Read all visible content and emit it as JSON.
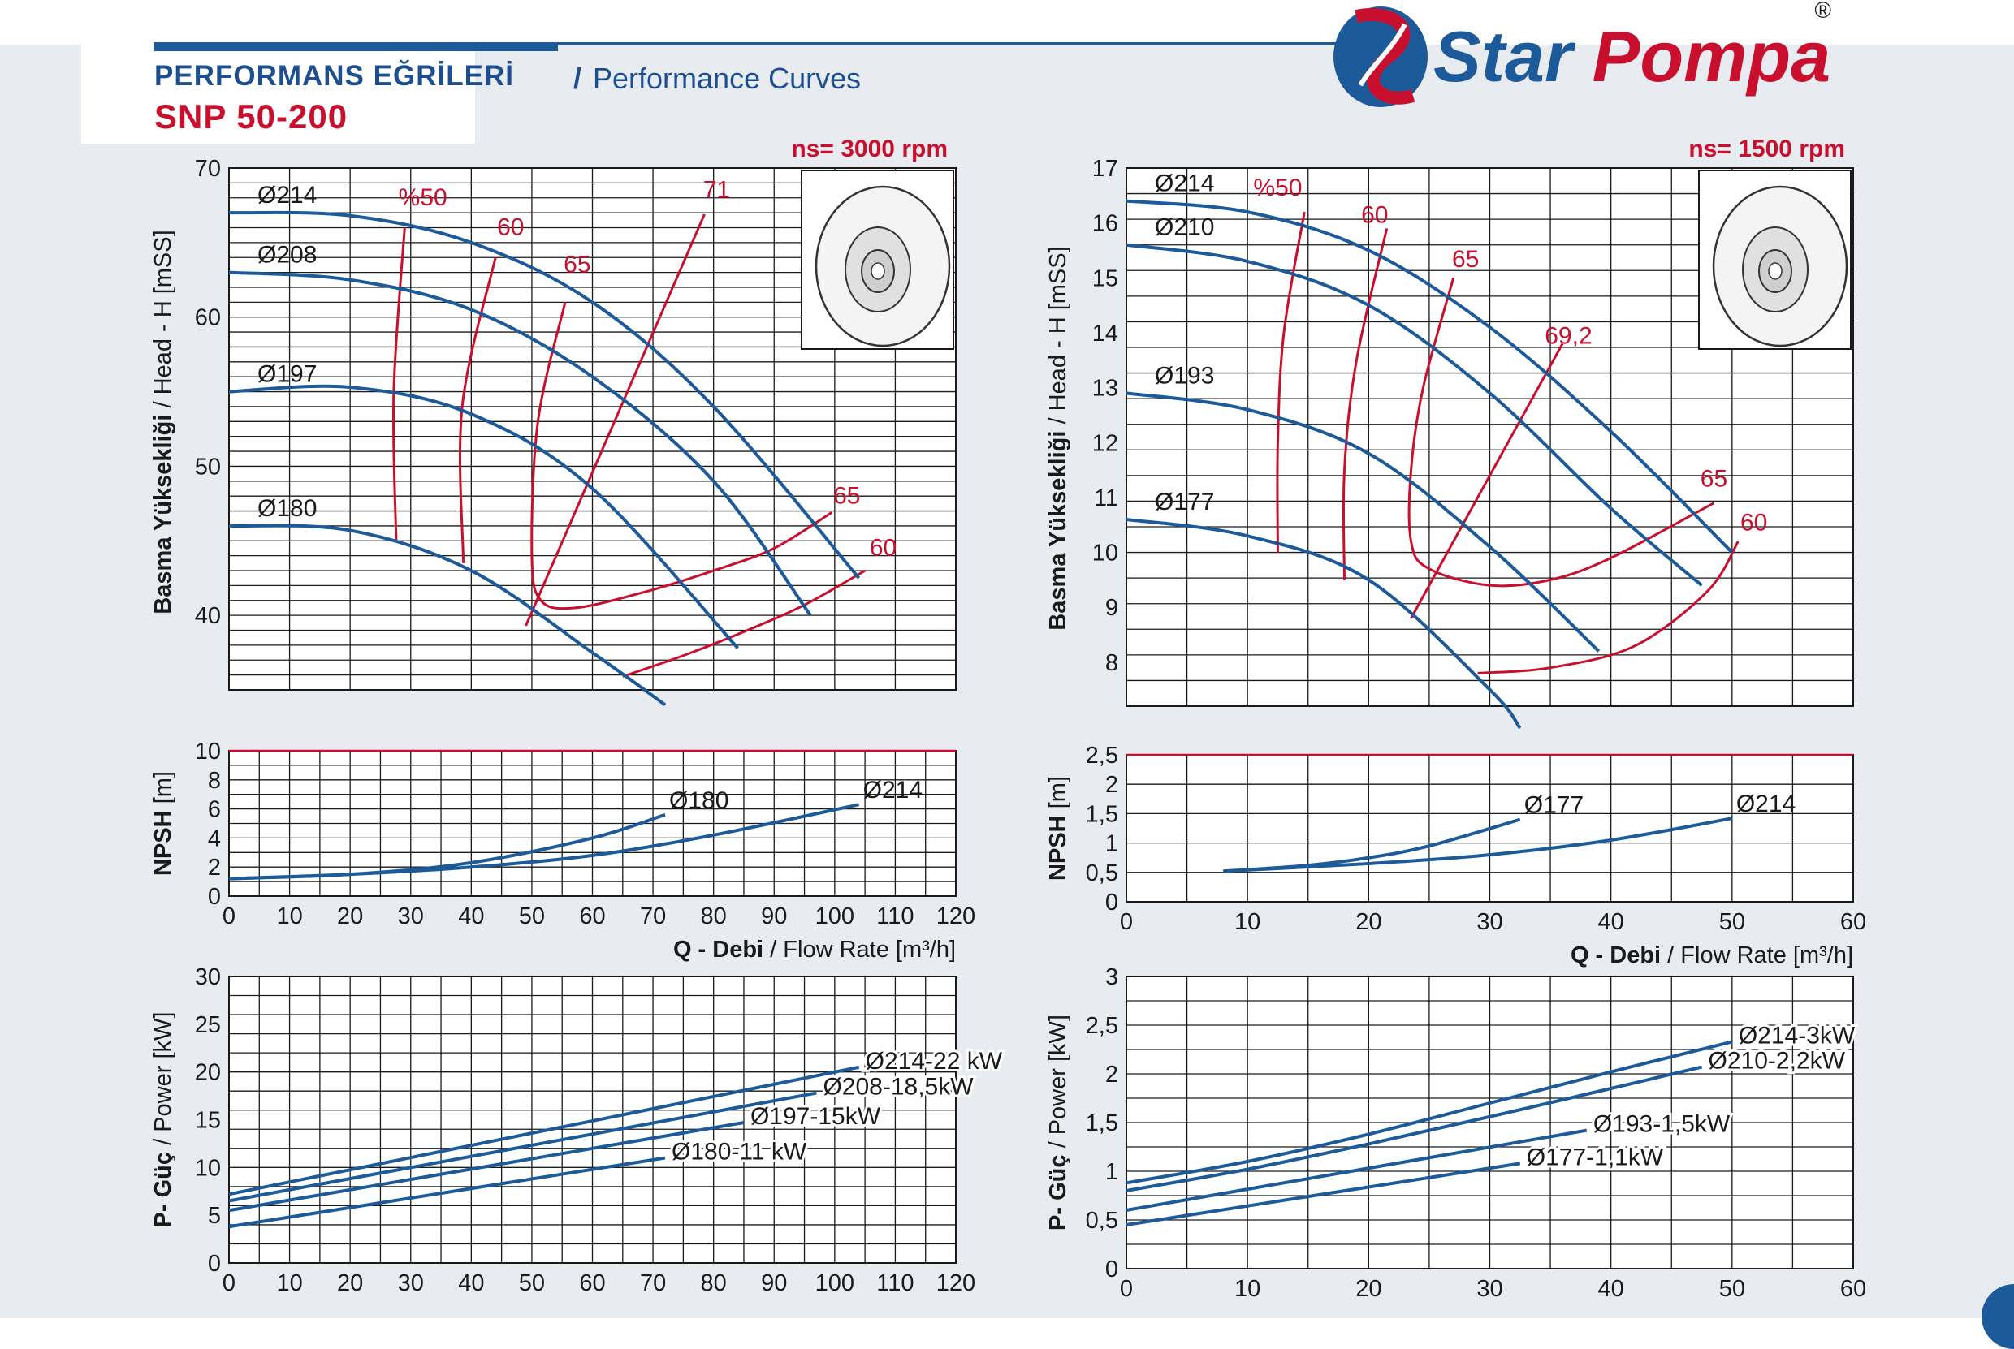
{
  "header": {
    "title_tr": "PERFORMANS EĞRİLERİ",
    "separator": "/",
    "title_en": "Performance Curves",
    "model": "SNP 50-200",
    "brand": "Star Pompa",
    "registered": "®"
  },
  "colors": {
    "blue": "#1d5a9a",
    "red": "#c8102e",
    "grid": "#1a1a1a",
    "text": "#1a1a1a"
  },
  "chart_data": [
    {
      "id": "head_3000",
      "type": "line",
      "speed_label": "ns= 3000 rpm",
      "ylabel_bold": "Basma Yüksekliği",
      "ylabel_rest": "/ Head - H [mSS]",
      "xlim": [
        0,
        120
      ],
      "ylim": [
        35,
        70
      ],
      "yticks": [
        40,
        50,
        60,
        70
      ],
      "impeller_thumbnail": true,
      "series": [
        {
          "name": "Ø214",
          "x": [
            0,
            20,
            40,
            60,
            80,
            104
          ],
          "y": [
            67,
            66.8,
            65,
            61,
            54,
            42.5
          ]
        },
        {
          "name": "Ø208",
          "x": [
            0,
            20,
            40,
            60,
            80,
            96
          ],
          "y": [
            63,
            62.5,
            60.5,
            56,
            49,
            40
          ]
        },
        {
          "name": "Ø197",
          "x": [
            0,
            20,
            40,
            60,
            84
          ],
          "y": [
            55,
            55.3,
            53.5,
            48.5,
            37.8
          ]
        },
        {
          "name": "Ø180",
          "x": [
            0,
            20,
            40,
            60,
            72
          ],
          "y": [
            46,
            45.7,
            43,
            37.5,
            34
          ]
        }
      ],
      "efficiency": [
        {
          "label": "%50",
          "x": [
            28.5,
            26.5,
            27
          ],
          "y": [
            66,
            55,
            45
          ]
        },
        {
          "label": "60",
          "x": [
            44,
            38.5,
            38.5
          ],
          "y": [
            64,
            53,
            43
          ]
        },
        {
          "label": "65",
          "x": [
            55.5,
            50,
            50,
            55,
            68,
            100
          ],
          "y": [
            61,
            52,
            41,
            40.5,
            42,
            46
          ]
        },
        {
          "label": "71",
          "x": [
            49,
            78
          ],
          "y": [
            39.3,
            67
          ]
        },
        {
          "label": "65",
          "x": [
            100
          ],
          "y": [
            46
          ]
        },
        {
          "label": "60",
          "x": [
            65,
            85,
            105
          ],
          "y": [
            35.5,
            39,
            43
          ]
        }
      ],
      "eff_lines": [
        {
          "x": [
            29,
            27.2,
            27.6
          ],
          "y": [
            66,
            55,
            45
          ]
        },
        {
          "x": [
            44,
            38.5,
            38.7
          ],
          "y": [
            64,
            54,
            43.5
          ]
        },
        {
          "x": [
            55.5,
            51,
            50,
            51.5,
            57,
            68,
            80,
            90,
            99.5
          ],
          "y": [
            61,
            53,
            44,
            41,
            40.5,
            41.5,
            43,
            44.5,
            46.9
          ]
        },
        {
          "x": [
            49,
            78.5
          ],
          "y": [
            39.3,
            66.9
          ]
        },
        {
          "x": [
            65,
            75,
            85,
            95,
            105
          ],
          "y": [
            35.9,
            37.3,
            38.9,
            40.7,
            43
          ]
        }
      ],
      "eff_labels": [
        {
          "text": "%50",
          "x": 32,
          "y": 67.5
        },
        {
          "text": "60",
          "x": 46.5,
          "y": 65.5
        },
        {
          "text": "65",
          "x": 57.5,
          "y": 63
        },
        {
          "text": "71",
          "x": 80.5,
          "y": 68
        },
        {
          "text": "65",
          "x": 102,
          "y": 47.5
        },
        {
          "text": "60",
          "x": 108,
          "y": 44
        }
      ]
    },
    {
      "id": "npsh_3000",
      "type": "line",
      "ylabel": "NPSH [m]",
      "xlabel_bold": "Q - Debi",
      "xlabel_rest": "/ Flow Rate [m³/h]",
      "xlim": [
        0,
        120
      ],
      "ylim": [
        0,
        10
      ],
      "xticks": [
        0,
        10,
        20,
        30,
        40,
        50,
        60,
        70,
        80,
        90,
        100,
        110,
        120
      ],
      "yticks": [
        0,
        2,
        4,
        6,
        8,
        10
      ],
      "series": [
        {
          "name": "Ø180",
          "x": [
            0,
            20,
            40,
            60,
            72
          ],
          "y": [
            1.2,
            1.5,
            2.3,
            4,
            5.6
          ]
        },
        {
          "name": "Ø214",
          "x": [
            0,
            20,
            40,
            60,
            80,
            104
          ],
          "y": [
            1.2,
            1.5,
            2,
            2.8,
            4.2,
            6.3
          ]
        }
      ]
    },
    {
      "id": "power_3000",
      "type": "line",
      "ylabel_bold": "P- Güç",
      "ylabel_rest": "/ Power [kW]",
      "xlim": [
        0,
        120
      ],
      "ylim": [
        0,
        30
      ],
      "xticks": [
        0,
        10,
        20,
        30,
        40,
        50,
        60,
        70,
        80,
        90,
        100,
        110,
        120
      ],
      "yticks": [
        0,
        5,
        10,
        15,
        20,
        25,
        30
      ],
      "series": [
        {
          "name": "Ø214-22 kW",
          "x": [
            0,
            104
          ],
          "y": [
            7.2,
            20.5
          ]
        },
        {
          "name": "Ø208-18,5kW",
          "x": [
            0,
            97
          ],
          "y": [
            6.5,
            17.8
          ]
        },
        {
          "name": "Ø197-15kW",
          "x": [
            0,
            85
          ],
          "y": [
            5.5,
            14.7
          ]
        },
        {
          "name": "Ø180-11 kW",
          "x": [
            0,
            72
          ],
          "y": [
            3.8,
            11
          ]
        }
      ]
    },
    {
      "id": "head_1500",
      "type": "line",
      "speed_label": "ns= 1500 rpm",
      "ylabel_bold": "Basma Yüksekliği",
      "ylabel_rest": "/ Head - H [mSS]",
      "xlim": [
        0,
        60
      ],
      "ylim": [
        7.2,
        17
      ],
      "yticks": [
        8,
        9,
        10,
        11,
        12,
        13,
        14,
        15,
        16,
        17
      ],
      "impeller_thumbnail": true,
      "series": [
        {
          "name": "Ø214",
          "x": [
            0,
            10,
            20,
            30,
            40,
            50
          ],
          "y": [
            16.4,
            16.2,
            15.5,
            14.1,
            12.2,
            10
          ]
        },
        {
          "name": "Ø210",
          "x": [
            0,
            10,
            20,
            30,
            40,
            47.5
          ],
          "y": [
            15.6,
            15.3,
            14.5,
            12.9,
            10.8,
            9.4
          ]
        },
        {
          "name": "Ø193",
          "x": [
            0,
            10,
            20,
            30,
            39
          ],
          "y": [
            12.9,
            12.6,
            11.8,
            10.1,
            8.2
          ]
        },
        {
          "name": "Ø177",
          "x": [
            0,
            10,
            20,
            30,
            32.5
          ],
          "y": [
            10.6,
            10.3,
            9.5,
            7.5,
            6.8
          ]
        }
      ],
      "efficiency": [
        {
          "label": "%50"
        },
        {
          "label": "60"
        },
        {
          "label": "65"
        },
        {
          "label": "69,2"
        },
        {
          "label": "65"
        },
        {
          "label": "60"
        }
      ],
      "eff_lines": [
        {
          "x": [
            14.7,
            13,
            12.5,
            12.5
          ],
          "y": [
            16.2,
            14,
            12,
            10
          ]
        },
        {
          "x": [
            21.5,
            19,
            18,
            18
          ],
          "y": [
            15.9,
            13.5,
            11.5,
            9.5
          ]
        },
        {
          "x": [
            27,
            24.5,
            23.5,
            23.5,
            25,
            30,
            35,
            40,
            48.5
          ],
          "y": [
            15,
            13,
            11.5,
            10.2,
            9.7,
            9.4,
            9.5,
            9.9,
            10.9
          ]
        },
        {
          "x": [
            23.5,
            36
          ],
          "y": [
            8.8,
            13.8
          ]
        },
        {
          "x": [
            29,
            35,
            42,
            48,
            50.5
          ],
          "y": [
            7.8,
            7.9,
            8.3,
            9.3,
            10.2
          ]
        }
      ],
      "eff_labels": [
        {
          "text": "%50",
          "x": 12.5,
          "y": 16.5
        },
        {
          "text": "60",
          "x": 20.5,
          "y": 16
        },
        {
          "text": "65",
          "x": 28,
          "y": 15.2
        },
        {
          "text": "69,2",
          "x": 36.5,
          "y": 13.8
        },
        {
          "text": "65",
          "x": 48.5,
          "y": 11.2
        },
        {
          "text": "60",
          "x": 51.8,
          "y": 10.4
        }
      ]
    },
    {
      "id": "npsh_1500",
      "type": "line",
      "ylabel": "NPSH [m]",
      "xlabel_bold": "Q - Debi",
      "xlabel_rest": "/ Flow Rate [m³/h]",
      "xlim": [
        0,
        60
      ],
      "ylim": [
        0,
        2.5
      ],
      "xticks": [
        0,
        10,
        20,
        30,
        40,
        50,
        60
      ],
      "ytick_labels": [
        "0",
        "0,5",
        "1",
        "1,5",
        "2",
        "2,5"
      ],
      "yticks": [
        0,
        0.5,
        1,
        1.5,
        2,
        2.5
      ],
      "series": [
        {
          "name": "Ø177",
          "x": [
            8,
            15,
            20,
            25,
            32.5
          ],
          "y": [
            0.52,
            0.62,
            0.75,
            0.95,
            1.4
          ]
        },
        {
          "name": "Ø214",
          "x": [
            8,
            20,
            30,
            40,
            50
          ],
          "y": [
            0.52,
            0.65,
            0.8,
            1.05,
            1.42
          ]
        }
      ]
    },
    {
      "id": "power_1500",
      "type": "line",
      "ylabel_bold": "P- Güç",
      "ylabel_rest": "/ Power [kW]",
      "xlim": [
        0,
        60
      ],
      "ylim": [
        0,
        3
      ],
      "xticks": [
        0,
        10,
        20,
        30,
        40,
        50,
        60
      ],
      "ytick_labels": [
        "0",
        "0,5",
        "1",
        "1,5",
        "2",
        "2,5",
        "3"
      ],
      "yticks": [
        0,
        0.5,
        1,
        1.5,
        2,
        2.5,
        3
      ],
      "series": [
        {
          "name": "Ø214-3kW",
          "x": [
            0,
            10,
            20,
            30,
            40,
            50
          ],
          "y": [
            0.88,
            1.1,
            1.38,
            1.7,
            2.02,
            2.33
          ]
        },
        {
          "name": "Ø210-2,2kW",
          "x": [
            0,
            10,
            20,
            30,
            40,
            47.5
          ],
          "y": [
            0.8,
            1.02,
            1.28,
            1.56,
            1.85,
            2.07
          ]
        },
        {
          "name": "Ø193-1,5kW",
          "x": [
            0,
            38
          ],
          "y": [
            0.6,
            1.42
          ]
        },
        {
          "name": "Ø177-1,1kW",
          "x": [
            0,
            32.5
          ],
          "y": [
            0.45,
            1.08
          ]
        }
      ]
    }
  ]
}
